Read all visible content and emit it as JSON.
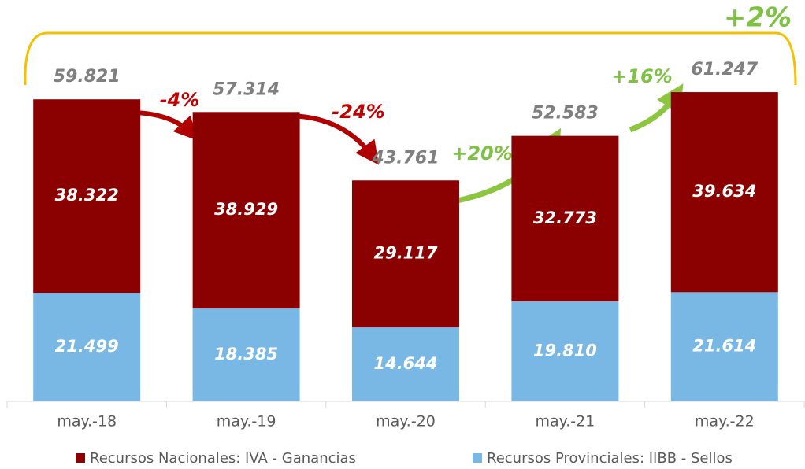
{
  "chart_data": {
    "type": "stacked-bar",
    "categories": [
      "may.-18",
      "may.-19",
      "may.-20",
      "may.-21",
      "may.-22"
    ],
    "series": [
      {
        "name": "Recursos Provinciales: IIBB - Sellos",
        "color": "#79b7e5",
        "values": [
          21.499,
          18.385,
          14.644,
          19.81,
          21.614
        ],
        "value_labels": [
          "21.499",
          "18.385",
          "14.644",
          "19.810",
          "21.614"
        ]
      },
      {
        "name": "Recursos Nacionales: IVA - Ganancias",
        "color": "#8b0000",
        "values": [
          38.322,
          38.929,
          29.117,
          32.773,
          39.634
        ],
        "value_labels": [
          "38.322",
          "38.929",
          "29.117",
          "32.773",
          "39.634"
        ]
      }
    ],
    "totals": [
      59.821,
      57.314,
      43.761,
      52.583,
      61.247
    ],
    "annotations": [
      "-4%",
      "-24%",
      "+20%",
      "+16%",
      "+2%"
    ],
    "ylim": [
      0,
      65
    ]
  }
}
